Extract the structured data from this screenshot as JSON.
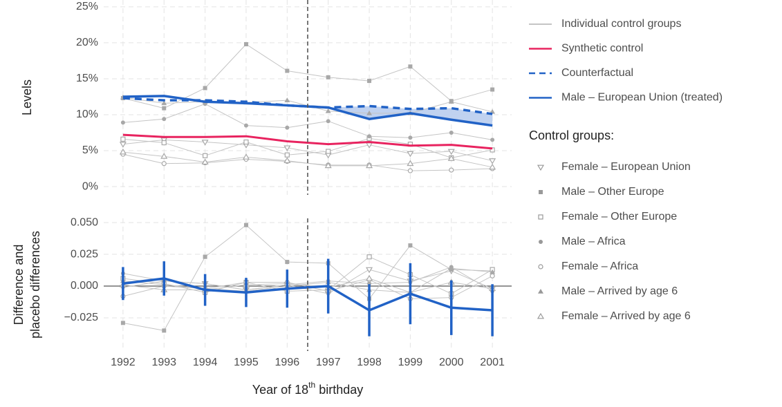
{
  "chart_data": [
    {
      "type": "line",
      "ylabel": [
        "Levels"
      ],
      "x": [
        1992,
        1993,
        1994,
        1995,
        1996,
        1997,
        1998,
        1999,
        2000,
        2001
      ],
      "xlim": [
        1991.53,
        2001.47
      ],
      "xticks": [
        1992,
        1993,
        1994,
        1995,
        1996,
        1997,
        1998,
        1999,
        2000,
        2001
      ],
      "xtick_labels": false,
      "ylim": [
        -1.15,
        25.95
      ],
      "yticks": [
        {
          "value": 0,
          "label": "0%"
        },
        {
          "value": 5,
          "label": "5%"
        },
        {
          "value": 10,
          "label": "10%"
        },
        {
          "value": 15,
          "label": "15%"
        },
        {
          "value": 20,
          "label": "20%"
        },
        {
          "value": 25,
          "label": "25%"
        }
      ],
      "grid": true,
      "treatment_x": 1996.5,
      "control_label": "Individual control groups",
      "control_color": "#c4c4c4",
      "control_legend_title": "Control groups:",
      "shade_from": 1997,
      "shade_color": "#b9cdee",
      "series": [
        {
          "name": "Female – European Union",
          "marker": "triangle-down-open",
          "color": "#c4c4c4",
          "values": [
            5.9,
            6.5,
            6.2,
            5.8,
            5.4,
            4.4,
            5.8,
            4.6,
            4.9,
            3.6
          ]
        },
        {
          "name": "Male – Other Europe",
          "marker": "square",
          "color": "#c4c4c4",
          "values": [
            12.3,
            10.9,
            13.7,
            19.8,
            16.1,
            15.2,
            14.7,
            16.7,
            11.9,
            13.5
          ]
        },
        {
          "name": "Female – Other Europe",
          "marker": "square-open",
          "color": "#c4c4c4",
          "values": [
            6.6,
            6.1,
            4.3,
            6.2,
            4.4,
            4.9,
            6.7,
            5.9,
            4.0,
            5.1
          ]
        },
        {
          "name": "Male – Africa",
          "marker": "circle",
          "color": "#c4c4c4",
          "values": [
            8.9,
            9.4,
            11.5,
            8.5,
            8.2,
            9.1,
            7.0,
            6.8,
            7.5,
            6.5
          ]
        },
        {
          "name": "Female – Africa",
          "marker": "circle-open",
          "color": "#c4c4c4",
          "values": [
            4.5,
            3.2,
            3.3,
            3.8,
            3.5,
            3.0,
            3.0,
            2.2,
            2.3,
            2.5
          ]
        },
        {
          "name": "Male – Arrived by age 6",
          "marker": "triangle",
          "color": "#c4c4c4",
          "values": [
            12.4,
            11.6,
            11.8,
            11.7,
            12.0,
            10.5,
            10.2,
            10.2,
            11.8,
            10.4
          ]
        },
        {
          "name": "Female – Arrived by age 6",
          "marker": "triangle-open",
          "color": "#c4c4c4",
          "values": [
            4.8,
            4.2,
            3.4,
            4.1,
            3.6,
            2.9,
            2.9,
            3.2,
            3.9,
            2.7
          ]
        },
        {
          "name": "Synthetic control",
          "color": "#e8235f",
          "width": 3,
          "values": [
            7.2,
            6.9,
            6.9,
            7.0,
            6.3,
            5.9,
            6.2,
            5.7,
            5.8,
            5.3
          ]
        },
        {
          "name": "Counterfactual",
          "color": "#2162c6",
          "width": 3.5,
          "dashed": true,
          "values": [
            12.3,
            12.0,
            12.0,
            11.8,
            11.3,
            11.0,
            11.2,
            10.8,
            10.9,
            10.1
          ]
        },
        {
          "name": "Male – European Union (treated)",
          "color": "#2162c6",
          "width": 3.5,
          "values": [
            12.5,
            12.6,
            11.8,
            11.6,
            11.3,
            11.0,
            9.4,
            10.2,
            9.3,
            8.5
          ]
        }
      ]
    },
    {
      "type": "line",
      "ylabel": [
        "Difference and",
        "placebo differences"
      ],
      "xlabel": [
        "Year of 18",
        "th",
        " birthday"
      ],
      "x": [
        1992,
        1993,
        1994,
        1995,
        1996,
        1997,
        1998,
        1999,
        2000,
        2001
      ],
      "xlim": [
        1991.53,
        2001.47
      ],
      "xticks": [
        1992,
        1993,
        1994,
        1995,
        1996,
        1997,
        1998,
        1999,
        2000,
        2001
      ],
      "xtick_labels": true,
      "ylim": [
        -0.0511,
        0.0533
      ],
      "yticks": [
        {
          "value": -0.025,
          "label": "−0.025"
        },
        {
          "value": 0,
          "label": "0.000"
        },
        {
          "value": 0.025,
          "label": "0.025"
        },
        {
          "value": 0.05,
          "label": "0.050"
        }
      ],
      "grid": true,
      "treatment_x": 1996.5,
      "reference_y": 0,
      "series": [
        {
          "name": "Female – European Union",
          "marker": "triangle-down-open",
          "color": "#c4c4c4",
          "values": [
            -0.001,
            0.004,
            0.002,
            -0.003,
            0.001,
            -0.006,
            0.013,
            0.004,
            0.012,
            -0.002
          ]
        },
        {
          "name": "Male – Other Europe",
          "marker": "square",
          "color": "#c4c4c4",
          "values": [
            -0.029,
            -0.035,
            0.023,
            0.048,
            0.019,
            0.018,
            -0.01,
            0.032,
            0.013,
            0.012
          ]
        },
        {
          "name": "Female – Other Europe",
          "marker": "square-open",
          "color": "#c4c4c4",
          "values": [
            0.006,
            0.002,
            -0.005,
            0.003,
            -0.004,
            -0.003,
            0.023,
            0.009,
            -0.006,
            0.013
          ]
        },
        {
          "name": "Male – Africa",
          "marker": "circle",
          "color": "#c4c4c4",
          "values": [
            0.01,
            0.004,
            0.002,
            -0.003,
            0.001,
            0.004,
            0.002,
            0.003,
            0.015,
            -0.004
          ]
        },
        {
          "name": "Female – Africa",
          "marker": "circle-open",
          "color": "#c4c4c4",
          "values": [
            -0.008,
            0.0,
            -0.002,
            0.003,
            0.003,
            -0.004,
            0.005,
            -0.01,
            -0.009,
            0.008
          ]
        },
        {
          "name": "Male – Arrived by age 6",
          "marker": "triangle",
          "color": "#c4c4c4",
          "values": [
            0.004,
            0.001,
            -0.002,
            -0.004,
            0.0,
            0.003,
            -0.003,
            -0.005,
            0.014,
            0.011
          ]
        },
        {
          "name": "Female – Arrived by age 6",
          "marker": "triangle-open",
          "color": "#c4c4c4",
          "values": [
            0.001,
            -0.003,
            -0.003,
            0.001,
            0.002,
            -0.001,
            0.006,
            -0.005,
            0.003,
            -0.002
          ]
        },
        {
          "name": "Male – European Union (treated)",
          "color": "#2162c6",
          "width": 3.5,
          "values": [
            0.002,
            0.006,
            -0.003,
            -0.005,
            -0.002,
            0.0,
            -0.019,
            -0.006,
            -0.017,
            -0.019
          ],
          "errors": [
            0.013,
            0.0135,
            0.0125,
            0.0115,
            0.015,
            0.0215,
            0.0205,
            0.024,
            0.0215,
            0.0205
          ]
        }
      ]
    }
  ]
}
